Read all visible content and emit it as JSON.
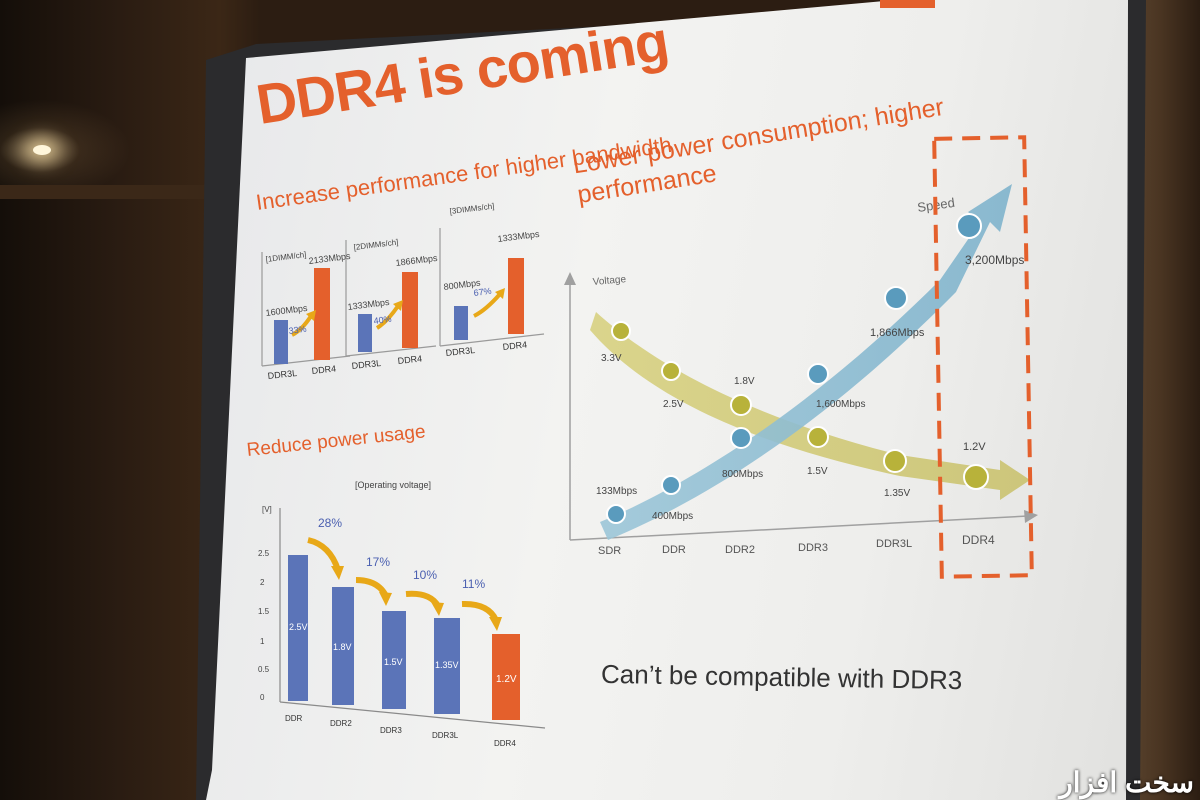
{
  "slide": {
    "title": "DDR4 is coming",
    "section_bandwidth": "Increase performance for higher bandwidth",
    "section_power": "Reduce power usage",
    "section_tradeoff": "Lower power consumption; higher performance",
    "footer_note": "Can’t be compatible with DDR3"
  },
  "bandwidth_panels": [
    {
      "header": "[1DIMM/ch]",
      "old_label": "1600Mbps",
      "new_label": "2133Mbps",
      "gain": "33%",
      "old_name": "DDR3L",
      "new_name": "DDR4",
      "old_value": 1600,
      "new_value": 2133
    },
    {
      "header": "[2DIMMs/ch]",
      "old_label": "1333Mbps",
      "new_label": "1866Mbps",
      "gain": "40%",
      "old_name": "DDR3L",
      "new_name": "DDR4",
      "old_value": 1333,
      "new_value": 1866
    },
    {
      "header": "[3DIMMs/ch]",
      "old_label": "800Mbps",
      "new_label": "1333Mbps",
      "gain": "67%",
      "old_name": "DDR3L",
      "new_name": "DDR4",
      "old_value": 800,
      "new_value": 1333
    }
  ],
  "power_chart": {
    "subtitle": "[Operating voltage]",
    "unit": "[V]",
    "yticks": [
      "0",
      "0.5",
      "1",
      "1.5",
      "2",
      "2.5"
    ],
    "bars": [
      {
        "name": "DDR",
        "label": "2.5V",
        "value": 2.5
      },
      {
        "name": "DDR2",
        "label": "1.8V",
        "value": 1.8
      },
      {
        "name": "DDR3",
        "label": "1.5V",
        "value": 1.5
      },
      {
        "name": "DDR3L",
        "label": "1.35V",
        "value": 1.35
      },
      {
        "name": "DDR4",
        "label": "1.2V",
        "value": 1.2
      }
    ],
    "reductions": [
      "28%",
      "17%",
      "10%",
      "11%"
    ]
  },
  "tradeoff_chart": {
    "y_axis_label": "Voltage",
    "speed_label": "Speed",
    "categories": [
      "SDR",
      "DDR",
      "DDR2",
      "DDR3",
      "DDR3L",
      "DDR4"
    ],
    "voltage_labels": [
      "3.3V",
      "2.5V",
      "1.8V",
      "1.5V",
      "1.35V",
      "1.2V"
    ],
    "speed_labels": [
      "133Mbps",
      "400Mbps",
      "800Mbps",
      "1,600Mbps",
      "1,866Mbps",
      "3,200Mbps"
    ]
  },
  "colors": {
    "accent": "#e4602c",
    "bar_blue": "#5b74b8",
    "speed_blue": "#7fb3cc",
    "voltage_olive": "#c9c24e"
  },
  "watermark": "سخت افزار"
}
